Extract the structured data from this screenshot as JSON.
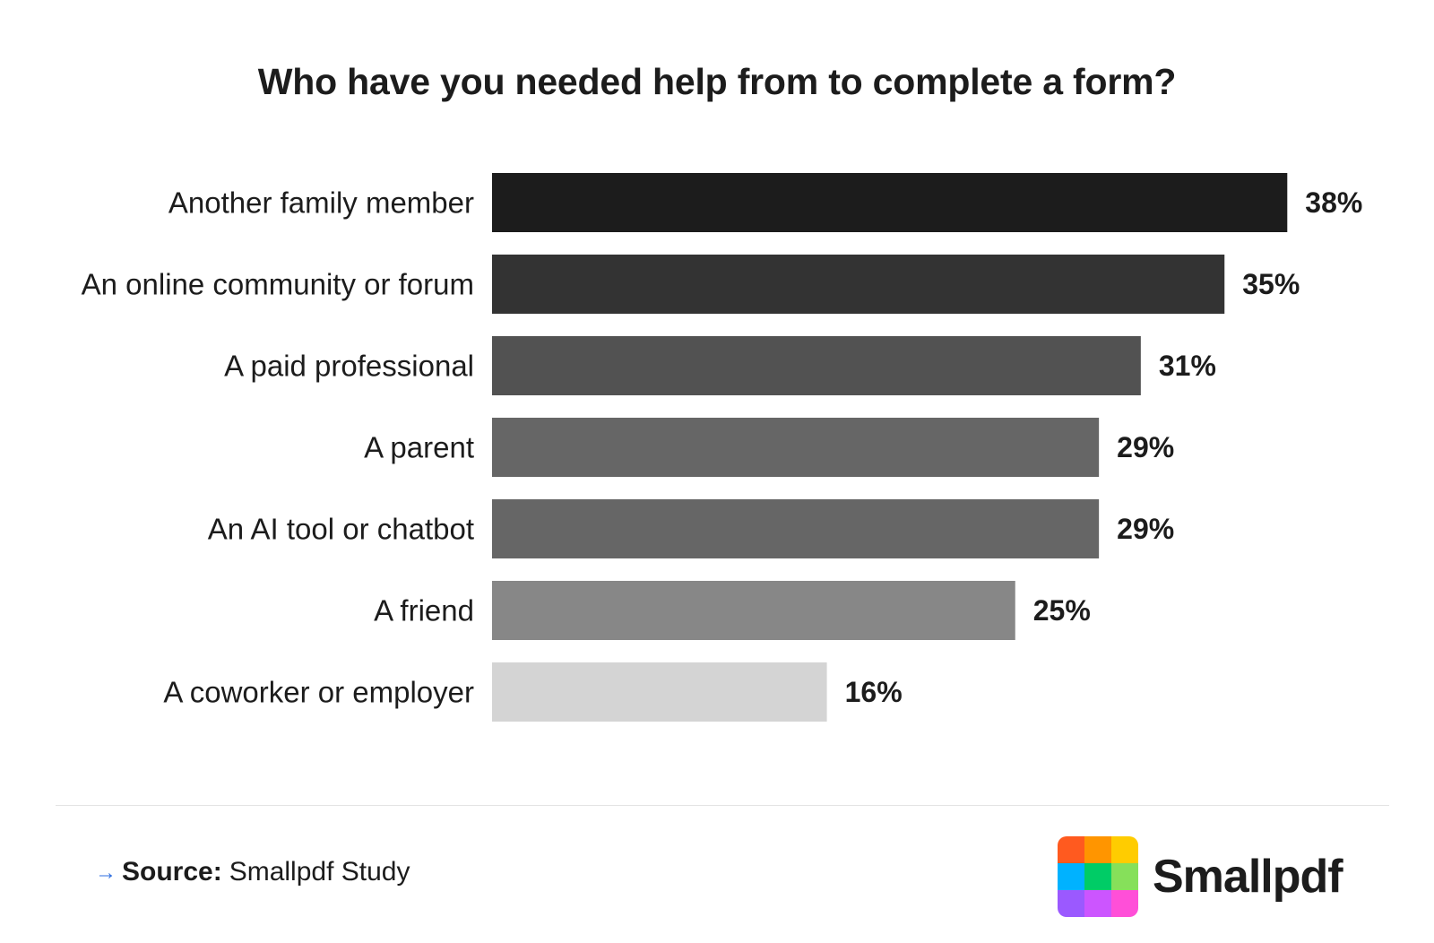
{
  "chart_data": {
    "type": "bar",
    "orientation": "horizontal",
    "title": "Who have you needed help from to complete a form?",
    "categories": [
      "Another family member",
      "An online community or forum",
      "A paid professional",
      "A parent",
      "An AI tool or chatbot",
      "A friend",
      "A coworker or employer"
    ],
    "values": [
      38,
      35,
      31,
      29,
      29,
      25,
      16
    ],
    "value_labels": [
      "38%",
      "35%",
      "31%",
      "29%",
      "29%",
      "25%",
      "16%"
    ],
    "bar_colors": [
      "#1c1c1c",
      "#333333",
      "#525252",
      "#666666",
      "#666666",
      "#878787",
      "#d4d4d4"
    ],
    "unit": "%",
    "xlabel": "",
    "ylabel": "",
    "grid": false,
    "legend": "none"
  },
  "footer": {
    "source_label": "Source:",
    "source_text": "Smallpdf Study"
  },
  "logo": {
    "name": "Smallpdf",
    "colors": [
      "#ff5a1f",
      "#ff9500",
      "#ffcc00",
      "#00b2ff",
      "#00cc66",
      "#86e05a",
      "#9b59ff",
      "#cc55ff",
      "#ff4fd8"
    ]
  }
}
